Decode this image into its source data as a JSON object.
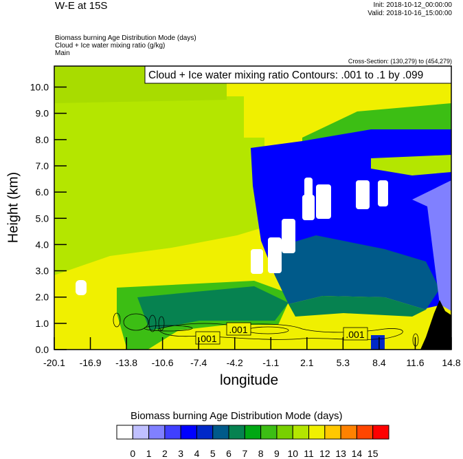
{
  "header": {
    "title": "W-E at 15S",
    "init": "Init: 2018-10-12_00:00:00",
    "valid": "Valid: 2018-10-16_15:00:00",
    "subtitle_lines": [
      "Biomass burning Age Distribution Mode   (days)",
      "Cloud + Ice water mixing ratio   (g/kg)",
      "Main"
    ],
    "cross_section": "Cross-Section: (130,279) to (454,279)"
  },
  "chart_data": {
    "type": "heatmap",
    "title": "W-E at 15S",
    "contour_legend": "Cloud + Ice water mixing ratio Contours: .001 to .1 by .099",
    "contour_labels": [
      ".001",
      ".001",
      ".001"
    ],
    "xlabel": "longitude",
    "ylabel": "Height (km)",
    "xlim": [
      -20.1,
      14.8
    ],
    "ylim": [
      0,
      10.8
    ],
    "xticks": [
      "-20.1",
      "-16.9",
      "-13.8",
      "-10.6",
      "-7.4",
      "-4.2",
      "-1.1",
      "2.1",
      "5.3",
      "8.4",
      "11.6",
      "14.8"
    ],
    "yticks": [
      "0.0",
      "1.0",
      "2.0",
      "3.0",
      "4.0",
      "5.0",
      "6.0",
      "7.0",
      "8.0",
      "9.0",
      "10.0"
    ],
    "colorbar": {
      "title": "Biomass burning Age Distribution Mode  (days)",
      "labels": [
        "0",
        "1",
        "2",
        "3",
        "4",
        "5",
        "6",
        "7",
        "8",
        "9",
        "10",
        "11",
        "12",
        "13",
        "14",
        "15"
      ],
      "colors": [
        "#ffffff",
        "#c0c0ff",
        "#8080ff",
        "#4040ff",
        "#0000ff",
        "#0028c8",
        "#005a8a",
        "#068250",
        "#00a814",
        "#3cbe14",
        "#78d000",
        "#b4e600",
        "#f0f000",
        "#ffc800",
        "#ff8200",
        "#ff4600",
        "#ff0000"
      ]
    }
  }
}
